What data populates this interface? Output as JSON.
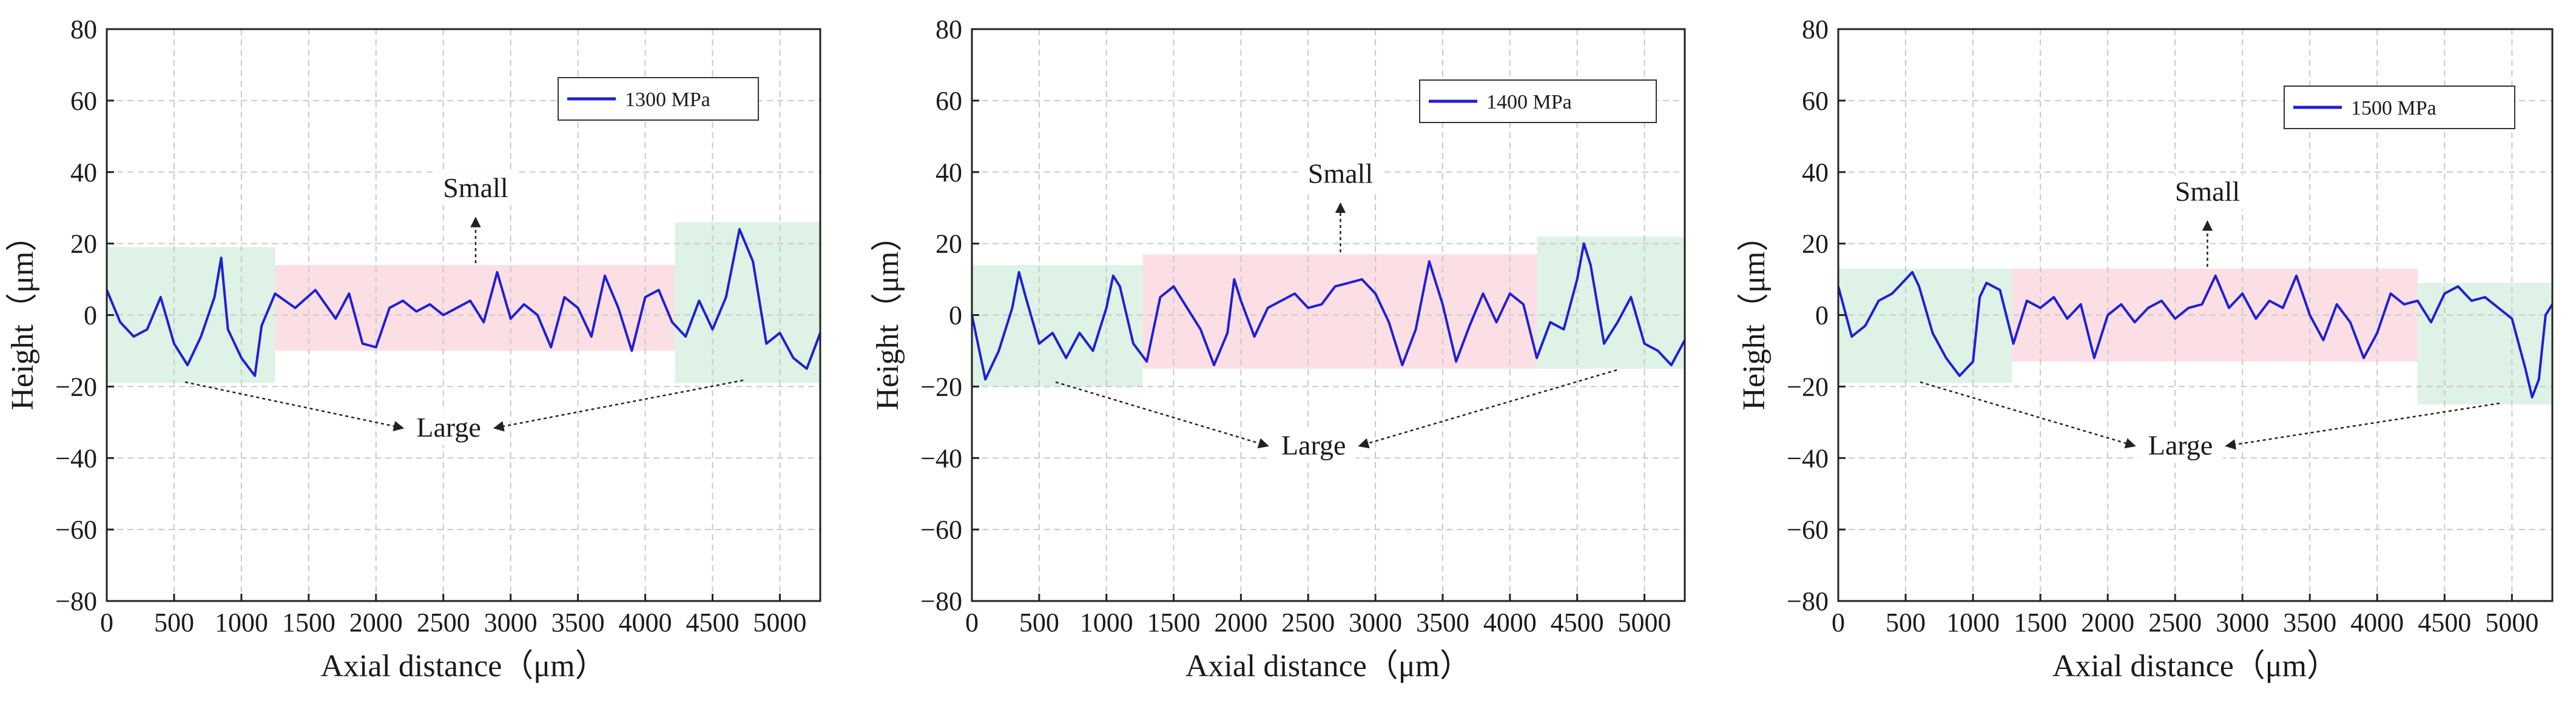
{
  "chart_data": [
    {
      "type": "line",
      "xlabel": "Axial distance（μm）",
      "ylabel": "Height（μm）",
      "xlim": [
        0,
        5300
      ],
      "ylim": [
        -80,
        80
      ],
      "xticks": [
        "0",
        "500",
        "1000",
        "1500",
        "2000",
        "2500",
        "3000",
        "3500",
        "4000",
        "4500",
        "5000"
      ],
      "yticks": [
        "80",
        "60",
        "40",
        "20",
        "0",
        "−20",
        "−40",
        "−60",
        "−80"
      ],
      "grid": true,
      "legend_position": "top-right",
      "series": [
        {
          "name": "1300 MPa",
          "color": "#1f1fd6",
          "x": [
            0,
            100,
            200,
            300,
            400,
            500,
            600,
            700,
            800,
            850,
            900,
            1000,
            1100,
            1150,
            1250,
            1400,
            1550,
            1700,
            1800,
            1900,
            2000,
            2100,
            2200,
            2300,
            2400,
            2500,
            2600,
            2700,
            2800,
            2900,
            3000,
            3100,
            3200,
            3300,
            3400,
            3500,
            3600,
            3700,
            3800,
            3900,
            4000,
            4100,
            4200,
            4300,
            4400,
            4500,
            4600,
            4700,
            4800,
            4900,
            5000,
            5100,
            5200,
            5300
          ],
          "y": [
            7,
            -2,
            -6,
            -4,
            5,
            -8,
            -14,
            -6,
            5,
            16,
            -4,
            -12,
            -17,
            -3,
            6,
            2,
            7,
            -1,
            6,
            -8,
            -9,
            2,
            4,
            1,
            3,
            0,
            2,
            4,
            -2,
            12,
            -1,
            3,
            0,
            -9,
            5,
            2,
            -6,
            11,
            2,
            -10,
            5,
            7,
            -2,
            -6,
            4,
            -4,
            5,
            24,
            15,
            -8,
            -5,
            -12,
            -15,
            -5
          ],
          "bands": [
            {
              "x": [
                0,
                1250
              ],
              "y": [
                -19,
                19
              ],
              "kind": "large"
            },
            {
              "x": [
                1250,
                4220
              ],
              "y": [
                -10,
                14
              ],
              "kind": "small"
            },
            {
              "x": [
                4220,
                5300
              ],
              "y": [
                -19,
                26
              ],
              "kind": "large"
            }
          ]
        }
      ],
      "annotations": [
        {
          "text": "Small",
          "x": 2740,
          "y": 33
        },
        {
          "text": "Large",
          "x": 2450,
          "y": -34
        }
      ]
    },
    {
      "type": "line",
      "xlabel": "Axial distance（μm）",
      "ylabel": "Height（μm）",
      "xlim": [
        0,
        5300
      ],
      "ylim": [
        -80,
        80
      ],
      "xticks": [
        "0",
        "500",
        "1000",
        "1500",
        "2000",
        "2500",
        "3000",
        "3500",
        "4000",
        "4500",
        "5000"
      ],
      "yticks": [
        "80",
        "60",
        "40",
        "20",
        "0",
        "−20",
        "−40",
        "−60",
        "−80"
      ],
      "grid": true,
      "legend_position": "top-right",
      "series": [
        {
          "name": "1400 MPa",
          "color": "#1f1fd6",
          "x": [
            0,
            100,
            200,
            300,
            350,
            400,
            500,
            600,
            700,
            800,
            900,
            1000,
            1050,
            1100,
            1200,
            1300,
            1400,
            1500,
            1600,
            1700,
            1800,
            1900,
            1950,
            2000,
            2100,
            2200,
            2300,
            2400,
            2500,
            2600,
            2700,
            2800,
            2900,
            3000,
            3100,
            3200,
            3300,
            3400,
            3500,
            3600,
            3700,
            3800,
            3900,
            4000,
            4100,
            4200,
            4300,
            4400,
            4500,
            4550,
            4600,
            4700,
            4800,
            4900,
            5000,
            5100,
            5200,
            5300
          ],
          "y": [
            0,
            -18,
            -10,
            2,
            12,
            5,
            -8,
            -5,
            -12,
            -5,
            -10,
            2,
            11,
            8,
            -8,
            -13,
            5,
            8,
            2,
            -4,
            -14,
            -5,
            10,
            4,
            -6,
            2,
            4,
            6,
            2,
            3,
            8,
            9,
            10,
            6,
            -2,
            -14,
            -4,
            15,
            3,
            -13,
            -3,
            6,
            -2,
            6,
            3,
            -12,
            -2,
            -4,
            10,
            20,
            14,
            -8,
            -2,
            5,
            -8,
            -10,
            -14,
            -7
          ],
          "bands": [
            {
              "x": [
                0,
                1270
              ],
              "y": [
                -20,
                14
              ],
              "kind": "large"
            },
            {
              "x": [
                1270,
                4200
              ],
              "y": [
                -15,
                17
              ],
              "kind": "small"
            },
            {
              "x": [
                4200,
                5300
              ],
              "y": [
                -15,
                22
              ],
              "kind": "large"
            }
          ]
        }
      ],
      "annotations": [
        {
          "text": "Small",
          "x": 2740,
          "y": 37
        },
        {
          "text": "Large",
          "x": 2450,
          "y": -39
        }
      ]
    },
    {
      "type": "line",
      "xlabel": "Axial distance（μm）",
      "ylabel": "Height（μm）",
      "xlim": [
        0,
        5300
      ],
      "ylim": [
        -80,
        80
      ],
      "xticks": [
        "0",
        "500",
        "1000",
        "1500",
        "2000",
        "2500",
        "3000",
        "3500",
        "4000",
        "4500",
        "5000"
      ],
      "yticks": [
        "80",
        "60",
        "40",
        "20",
        "0",
        "−20",
        "−40",
        "−60",
        "−80"
      ],
      "grid": true,
      "legend_position": "top-right",
      "series": [
        {
          "name": "1500 MPa",
          "color": "#1f1fd6",
          "x": [
            0,
            100,
            200,
            300,
            400,
            500,
            550,
            600,
            700,
            800,
            900,
            1000,
            1050,
            1100,
            1200,
            1300,
            1400,
            1500,
            1600,
            1700,
            1800,
            1900,
            2000,
            2100,
            2200,
            2300,
            2400,
            2500,
            2600,
            2700,
            2800,
            2900,
            3000,
            3100,
            3200,
            3300,
            3400,
            3500,
            3600,
            3700,
            3800,
            3900,
            4000,
            4100,
            4200,
            4300,
            4400,
            4500,
            4600,
            4700,
            4800,
            4900,
            5000,
            5100,
            5150,
            5200,
            5250,
            5300
          ],
          "y": [
            8,
            -6,
            -3,
            4,
            6,
            10,
            12,
            8,
            -5,
            -12,
            -17,
            -13,
            5,
            9,
            7,
            -8,
            4,
            2,
            5,
            -1,
            3,
            -12,
            0,
            3,
            -2,
            2,
            4,
            -1,
            2,
            3,
            11,
            2,
            6,
            -1,
            4,
            2,
            11,
            0,
            -7,
            3,
            -2,
            -12,
            -5,
            6,
            3,
            4,
            -2,
            6,
            8,
            4,
            5,
            2,
            -1,
            -15,
            -23,
            -18,
            0,
            3
          ],
          "bands": [
            {
              "x": [
                0,
                1290
              ],
              "y": [
                -19,
                13
              ],
              "kind": "large"
            },
            {
              "x": [
                1290,
                4300
              ],
              "y": [
                -13,
                13
              ],
              "kind": "small"
            },
            {
              "x": [
                4300,
                5300
              ],
              "y": [
                -25,
                9
              ],
              "kind": "large"
            }
          ]
        }
      ],
      "annotations": [
        {
          "text": "Small",
          "x": 2740,
          "y": 32
        },
        {
          "text": "Large",
          "x": 2450,
          "y": -39
        }
      ]
    }
  ]
}
